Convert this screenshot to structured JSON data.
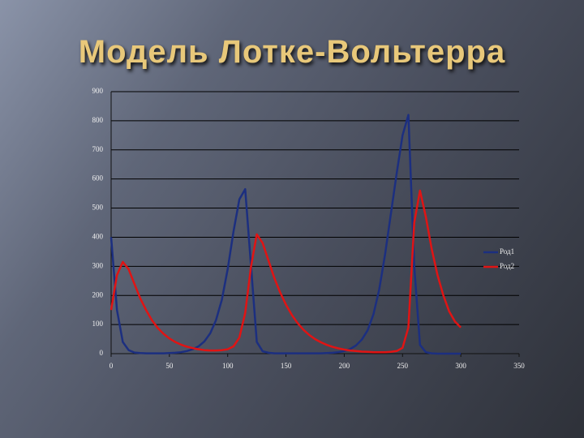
{
  "chart_data": {
    "type": "line",
    "title": "Модель Лотке-Вольтерра",
    "x": [
      0,
      5,
      10,
      15,
      20,
      25,
      30,
      35,
      40,
      45,
      50,
      55,
      60,
      65,
      70,
      75,
      80,
      85,
      90,
      95,
      100,
      105,
      110,
      115,
      120,
      125,
      130,
      135,
      140,
      145,
      150,
      155,
      160,
      165,
      170,
      175,
      180,
      185,
      190,
      195,
      200,
      205,
      210,
      215,
      220,
      225,
      230,
      235,
      240,
      245,
      250,
      255,
      260,
      265,
      270,
      275,
      280,
      285,
      290,
      295,
      300
    ],
    "series": [
      {
        "name": "Род1",
        "color": "#1c2f80",
        "values": [
          400,
          150,
          40,
          12,
          4,
          2,
          1,
          1,
          1,
          1,
          2,
          3,
          5,
          9,
          15,
          25,
          42,
          70,
          115,
          185,
          290,
          420,
          530,
          565,
          300,
          40,
          8,
          3,
          1,
          1,
          1,
          1,
          1,
          1,
          1,
          1,
          1,
          2,
          3,
          5,
          9,
          16,
          28,
          48,
          80,
          135,
          220,
          340,
          480,
          620,
          750,
          820,
          300,
          30,
          5,
          1,
          0,
          0,
          0,
          0,
          0
        ]
      },
      {
        "name": "Род2",
        "color": "#e01414",
        "values": [
          150,
          270,
          315,
          290,
          240,
          190,
          150,
          115,
          88,
          68,
          52,
          40,
          31,
          24,
          19,
          15,
          12,
          11,
          11,
          12,
          15,
          25,
          55,
          140,
          300,
          410,
          380,
          320,
          260,
          210,
          168,
          133,
          105,
          82,
          64,
          50,
          39,
          30,
          23,
          18,
          14,
          11,
          9,
          7,
          6,
          5,
          5,
          5,
          6,
          9,
          20,
          90,
          450,
          560,
          470,
          360,
          270,
          200,
          145,
          110,
          90
        ]
      }
    ],
    "xlim": [
      0,
      350
    ],
    "xticks": [
      0,
      50,
      100,
      150,
      200,
      250,
      300,
      350
    ],
    "ylim": [
      0,
      900
    ],
    "yticks": [
      0,
      100,
      200,
      300,
      400,
      500,
      600,
      700,
      800,
      900
    ],
    "grid": true,
    "legend": "right"
  }
}
